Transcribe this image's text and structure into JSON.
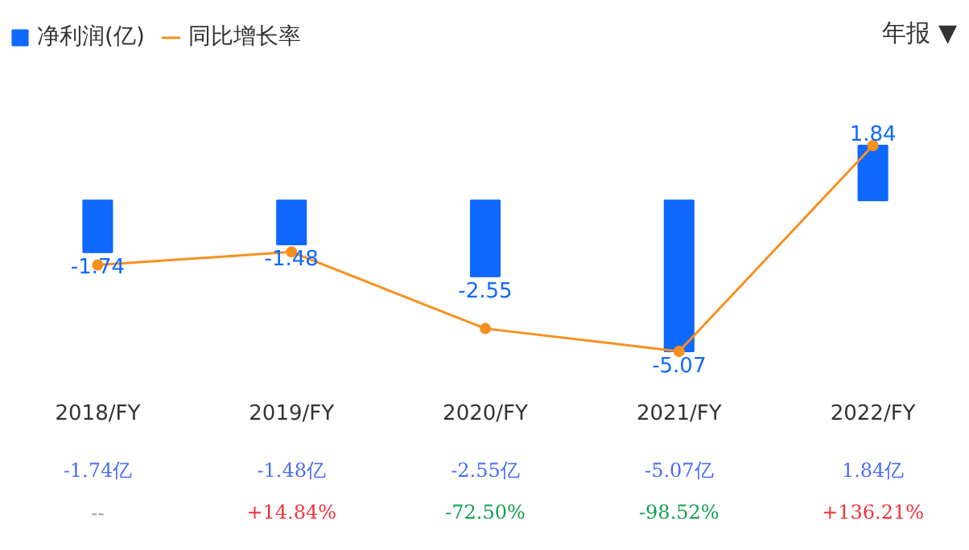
{
  "chart_data": {
    "type": "bar",
    "categories": [
      "2018/FY",
      "2019/FY",
      "2020/FY",
      "2021/FY",
      "2022/FY"
    ],
    "series": [
      {
        "name": "净利润(亿)",
        "color": "#0f68ff",
        "values": [
          -1.74,
          -1.48,
          -2.55,
          -5.07,
          1.84
        ]
      },
      {
        "name": "同比增长率",
        "type": "line",
        "axis": "y2",
        "color": "#f7901e",
        "values": [
          0,
          14.84,
          -72.5,
          -98.52,
          136.21
        ],
        "value_labels": [
          "--",
          "+14.84%",
          "-72.50%",
          "-98.52%",
          "+136.21%"
        ]
      }
    ],
    "data_labels": true,
    "legend": "top left",
    "marker": "circle",
    "annotations": [
      "年报 ▼",
      "-1.74亿",
      "-1.48亿",
      "-2.55亿",
      "-5.07亿",
      "1.84亿"
    ]
  }
}
